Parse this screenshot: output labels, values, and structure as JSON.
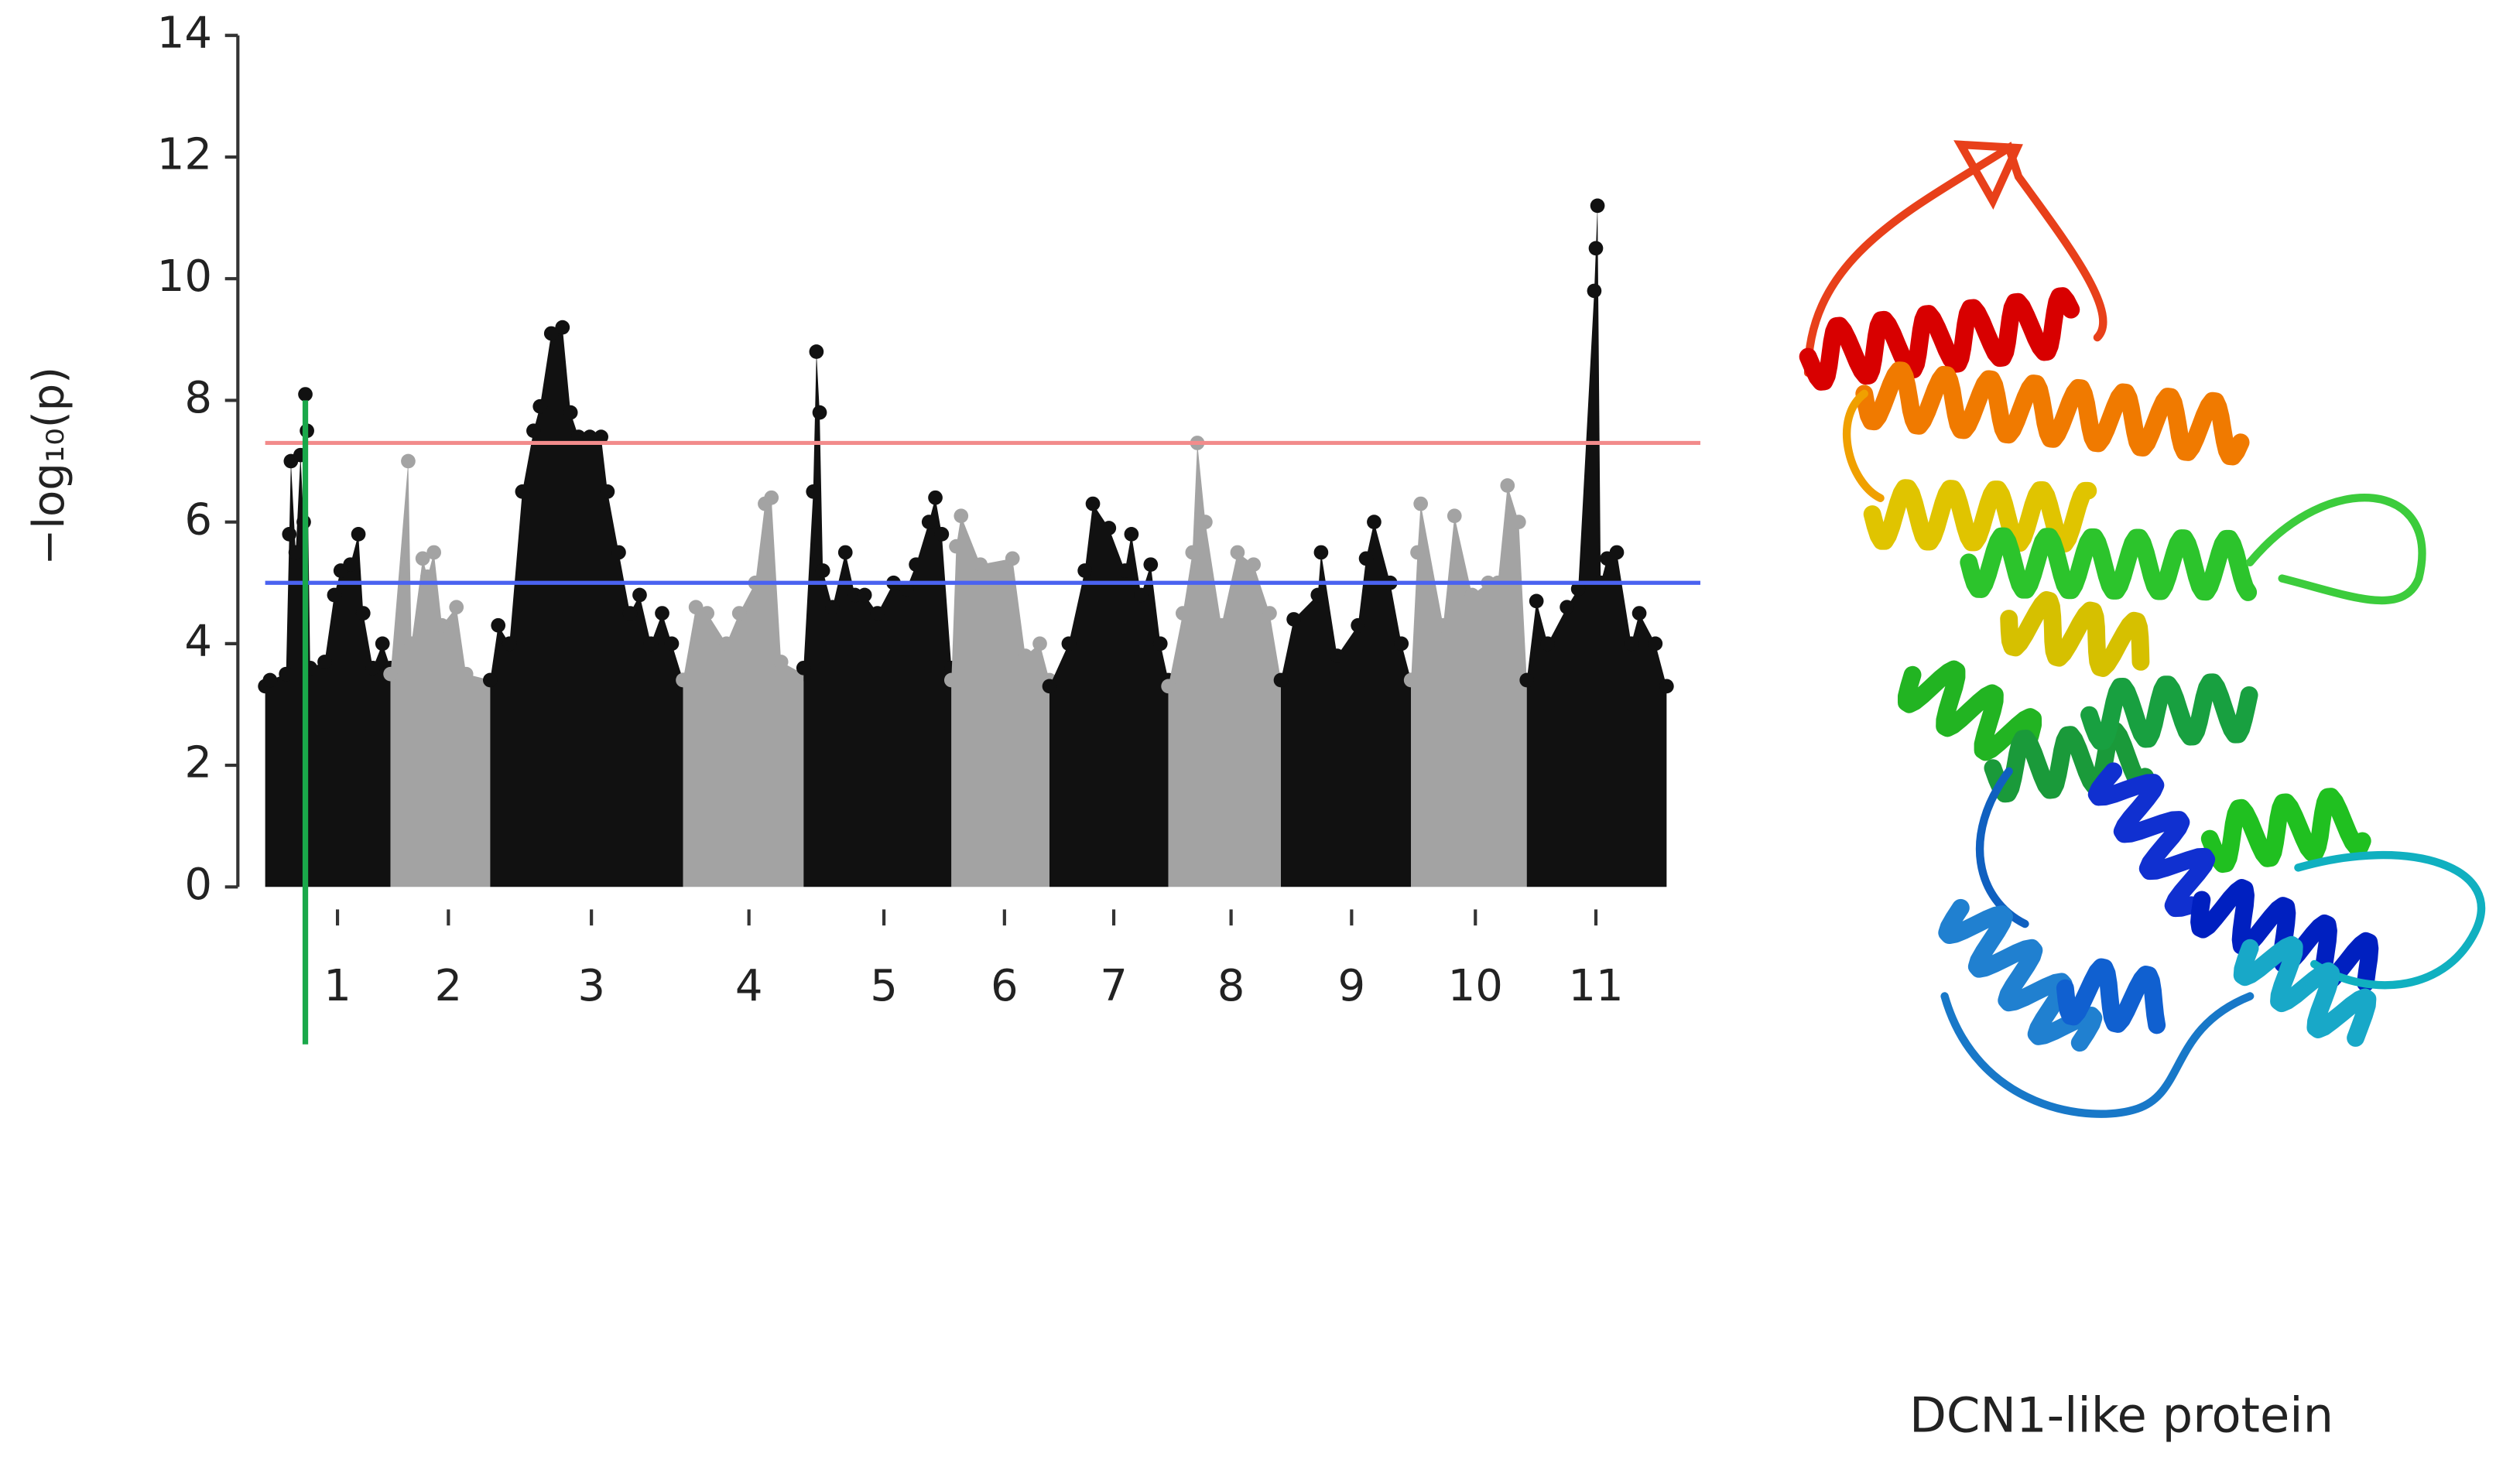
{
  "chart_data": {
    "type": "scatter",
    "ylabel": "−log₁₀(p)",
    "xlim": [
      0,
      880
    ],
    "ylim": [
      0,
      14
    ],
    "yticks": [
      0,
      2,
      4,
      6,
      8,
      10,
      12,
      14
    ],
    "xticks": [
      {
        "value": 50,
        "label": "1"
      },
      {
        "value": 119,
        "label": "2"
      },
      {
        "value": 208,
        "label": "3"
      },
      {
        "value": 306,
        "label": "4"
      },
      {
        "value": 390,
        "label": "5"
      },
      {
        "value": 465,
        "label": "6"
      },
      {
        "value": 533,
        "label": "7"
      },
      {
        "value": 606,
        "label": "8"
      },
      {
        "value": 681,
        "label": "9"
      },
      {
        "value": 758,
        "label": "10"
      },
      {
        "value": 833,
        "label": "11"
      }
    ],
    "hlines": [
      {
        "value": 7.3,
        "color": "#f28b8b"
      },
      {
        "value": 5.0,
        "color": "#4a62f0"
      }
    ],
    "vline": {
      "x": 30,
      "color": "#1aa84a"
    },
    "series": [
      {
        "color": "#111111",
        "x": [
          5,
          8,
          18,
          20,
          21,
          24,
          27,
          29,
          30,
          31,
          33,
          42,
          48,
          52,
          58,
          63,
          66,
          72,
          78,
          83
        ],
        "values": [
          3.3,
          3.4,
          3.5,
          5.8,
          7.0,
          5.5,
          7.1,
          6.0,
          8.1,
          7.5,
          3.6,
          3.7,
          4.8,
          5.2,
          5.3,
          5.8,
          4.5,
          3.6,
          4.0,
          3.6
        ]
      },
      {
        "color": "#a3a3a3",
        "x": [
          83,
          94,
          96,
          103,
          106,
          110,
          115,
          124,
          130,
          145
        ],
        "values": [
          3.5,
          7.0,
          4.0,
          5.4,
          5.1,
          5.5,
          4.3,
          4.6,
          3.5,
          3.4
        ]
      },
      {
        "color": "#111111",
        "x": [
          145,
          150,
          157,
          165,
          172,
          176,
          183,
          190,
          195,
          200,
          207,
          214,
          218,
          225,
          232,
          238,
          245,
          252,
          258,
          265
        ],
        "values": [
          3.4,
          4.3,
          4.0,
          6.5,
          7.5,
          7.9,
          9.1,
          9.2,
          7.8,
          7.4,
          7.4,
          7.4,
          6.5,
          5.5,
          4.5,
          4.8,
          4.0,
          4.5,
          4.0,
          3.4
        ]
      },
      {
        "color": "#a3a3a3",
        "x": [
          265,
          273,
          280,
          292,
          300,
          310,
          316,
          320,
          326,
          340
        ],
        "values": [
          3.4,
          4.6,
          4.5,
          4.0,
          4.5,
          5.0,
          6.3,
          6.4,
          3.7,
          3.5
        ]
      },
      {
        "color": "#111111",
        "x": [
          340,
          346,
          348,
          350,
          352,
          358,
          366,
          372,
          378,
          386,
          396,
          404,
          410,
          418,
          422,
          426,
          432
        ],
        "values": [
          3.6,
          6.5,
          8.8,
          7.8,
          5.2,
          4.6,
          5.5,
          4.8,
          4.8,
          4.5,
          5.0,
          4.9,
          5.3,
          6.0,
          6.4,
          5.8,
          3.6
        ]
      },
      {
        "color": "#a3a3a3",
        "x": [
          432,
          435,
          438,
          450,
          470,
          478,
          487,
          493
        ],
        "values": [
          3.4,
          5.6,
          6.1,
          5.3,
          5.4,
          3.8,
          4.0,
          3.4
        ]
      },
      {
        "color": "#111111",
        "x": [
          493,
          505,
          515,
          520,
          530,
          540,
          544,
          550,
          556,
          562,
          567
        ],
        "values": [
          3.3,
          4.0,
          5.2,
          6.3,
          5.9,
          5.2,
          5.8,
          4.8,
          5.3,
          4.0,
          3.4
        ]
      },
      {
        "color": "#a3a3a3",
        "x": [
          567,
          576,
          582,
          585,
          590,
          600,
          610,
          620,
          630,
          637
        ],
        "values": [
          3.3,
          4.5,
          5.5,
          7.3,
          6.0,
          4.3,
          5.5,
          5.3,
          4.5,
          3.4
        ]
      },
      {
        "color": "#111111",
        "x": [
          637,
          645,
          660,
          662,
          672,
          685,
          690,
          695,
          705,
          712,
          718
        ],
        "values": [
          3.4,
          4.4,
          4.8,
          5.5,
          3.8,
          4.3,
          5.4,
          6.0,
          5.0,
          4.0,
          3.4
        ]
      },
      {
        "color": "#a3a3a3",
        "x": [
          718,
          722,
          724,
          738,
          745,
          756,
          766,
          772,
          778,
          785,
          790
        ],
        "values": [
          3.4,
          5.5,
          6.3,
          4.3,
          6.1,
          4.8,
          5.0,
          5.0,
          6.6,
          6.0,
          3.4
        ]
      },
      {
        "color": "#111111",
        "x": [
          790,
          796,
          803,
          815,
          822,
          832,
          833,
          834,
          836,
          840,
          846,
          855,
          860,
          870,
          877
        ],
        "values": [
          3.4,
          4.7,
          4.0,
          4.6,
          4.9,
          9.8,
          10.5,
          11.2,
          5.0,
          5.4,
          5.5,
          4.0,
          4.5,
          4.0,
          3.3
        ]
      }
    ]
  },
  "caption": "DCN1-like protein"
}
